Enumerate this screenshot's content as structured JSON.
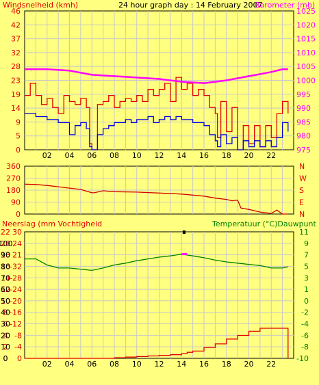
{
  "colors": {
    "bg": "#ffff80",
    "plot": "#ffff80",
    "grid": "#c8c8c8",
    "red": "#e00000",
    "blue": "#0000dd",
    "magenta": "#ff00ff",
    "green": "#008000",
    "wind_dir": "#d00000",
    "frame": "#000000"
  },
  "header": {
    "left": "Windsnelheid (kmh)",
    "center": "24 hour graph day : 14 February 2007",
    "right": "Barometer (mb)"
  },
  "chart_data": [
    {
      "type": "line",
      "name": "wind-barometer",
      "x_ticks": [
        "02",
        "04",
        "06",
        "08",
        "10",
        "12",
        "14",
        "16",
        "18",
        "20",
        "22"
      ],
      "x_range": [
        0,
        24
      ],
      "y_left": {
        "range": [
          0,
          46
        ],
        "ticks": [
          "0",
          "5",
          "9",
          "14",
          "19",
          "23",
          "28",
          "32",
          "37",
          "42",
          "46"
        ]
      },
      "y_right": {
        "range": [
          975,
          1025
        ],
        "ticks": [
          "975",
          "980",
          "985",
          "990",
          "995",
          "1000",
          "1005",
          "1010",
          "1015",
          "1020",
          "1025"
        ]
      },
      "series": [
        {
          "key": "gust",
          "color": "red",
          "axis": "left",
          "x": [
            0,
            0.5,
            1,
            1.5,
            2,
            2.5,
            3,
            3.5,
            4,
            4.5,
            5,
            5.5,
            5.8,
            6,
            6.5,
            7,
            7.5,
            8,
            8.5,
            9,
            9.5,
            10,
            10.5,
            11,
            11.5,
            12,
            12.5,
            13,
            13.5,
            14,
            14.5,
            15,
            15.5,
            16,
            16.5,
            17,
            17.2,
            17.5,
            18,
            18.5,
            19,
            19.5,
            20,
            20.5,
            21,
            21.5,
            22,
            22.5,
            23,
            23.5
          ],
          "y": [
            18,
            22,
            18,
            15,
            17,
            14,
            12,
            18,
            16,
            15,
            17,
            14,
            2,
            0,
            15,
            16,
            18,
            14,
            16,
            17,
            16,
            18,
            16,
            20,
            18,
            20,
            22,
            16,
            24,
            20,
            22,
            18,
            20,
            18,
            14,
            12,
            4,
            16,
            6,
            14,
            0,
            8,
            2,
            8,
            1,
            8,
            4,
            12,
            16,
            12
          ]
        },
        {
          "key": "wind",
          "color": "blue",
          "axis": "left",
          "x": [
            0,
            0.5,
            1,
            1.5,
            2,
            2.5,
            3,
            3.5,
            4,
            4.5,
            5,
            5.5,
            5.8,
            6,
            6.5,
            7,
            7.5,
            8,
            8.5,
            9,
            9.5,
            10,
            10.5,
            11,
            11.5,
            12,
            12.5,
            13,
            13.5,
            14,
            14.5,
            15,
            15.5,
            16,
            16.5,
            17,
            17.2,
            17.5,
            18,
            18.5,
            19,
            19.5,
            20,
            20.5,
            21,
            21.5,
            22,
            22.5,
            23,
            23.5
          ],
          "y": [
            12,
            12,
            11,
            11,
            10,
            10,
            9,
            9,
            5,
            8,
            9,
            7,
            1,
            0,
            5,
            7,
            8,
            9,
            9,
            10,
            9,
            10,
            10,
            11,
            9,
            10,
            11,
            10,
            11,
            10,
            10,
            9,
            9,
            8,
            5,
            3,
            1,
            5,
            2,
            4,
            0,
            3,
            1,
            3,
            1,
            3,
            1,
            4,
            9,
            6
          ]
        },
        {
          "key": "barometer",
          "color": "magenta",
          "axis": "right",
          "x": [
            0,
            2,
            4,
            6,
            8,
            10,
            12,
            14,
            16,
            18,
            20,
            22,
            23,
            23.5
          ],
          "y": [
            1004,
            1004,
            1003.5,
            1002,
            1001.5,
            1001,
            1000.5,
            999.5,
            999,
            1000,
            1001.5,
            1003,
            1004,
            1004
          ]
        }
      ]
    },
    {
      "type": "line",
      "name": "wind-direction",
      "x_range": [
        0,
        24
      ],
      "y_left": {
        "range": [
          0,
          360
        ],
        "ticks": [
          "0",
          "90",
          "180",
          "270",
          "360"
        ]
      },
      "y_right": {
        "ticks": [
          "N",
          "E",
          "S",
          "W",
          "N"
        ]
      },
      "series": [
        {
          "key": "direction",
          "color": "wind_dir",
          "x": [
            0,
            1,
            2,
            3,
            4,
            5,
            6,
            6.2,
            7,
            8,
            10,
            12,
            14,
            16,
            17,
            18,
            18.5,
            19,
            19.3,
            20,
            21,
            22,
            22.5,
            23,
            23.5
          ],
          "y": [
            225,
            222,
            215,
            205,
            195,
            185,
            160,
            160,
            175,
            168,
            165,
            158,
            150,
            135,
            120,
            110,
            100,
            105,
            45,
            35,
            15,
            5,
            30,
            0,
            0
          ]
        }
      ]
    },
    {
      "type": "line",
      "name": "rain-humidity-temperature",
      "x_range": [
        0,
        24
      ],
      "labels": {
        "left": "Neerslag (mm Vochtigheid",
        "right": "Temperatuur (°C)Dauwpunt"
      },
      "y_left_a": {
        "ticks": [
          "0",
          "2",
          "4",
          "6",
          "8",
          "10",
          "12",
          "14",
          "16",
          "18",
          "20",
          "22"
        ]
      },
      "y_left_b": {
        "ticks": [
          "0",
          "10",
          "20",
          "30",
          "40",
          "50",
          "60",
          "70",
          "80",
          "90",
          "100"
        ]
      },
      "y_left_mid": {
        "ticks": [
          "0",
          "-4",
          "-8",
          "-12",
          "-16",
          "-20",
          "-24",
          "-28",
          "-32",
          "21",
          "24",
          "30"
        ]
      },
      "y_right": {
        "range": [
          -10,
          11
        ],
        "ticks": [
          "-10",
          "-8",
          "-6",
          "-4",
          "-2",
          "0",
          "1",
          "3",
          "5",
          "7",
          "9",
          "11"
        ]
      },
      "series": [
        {
          "key": "temperature",
          "color": "green",
          "axis": "right",
          "x": [
            0,
            1,
            2,
            3,
            4,
            5,
            6,
            7,
            8,
            9,
            10,
            11,
            12,
            13,
            14,
            15,
            16,
            17,
            18,
            19,
            20,
            21,
            22,
            23,
            23.5
          ],
          "y": [
            6.5,
            6.5,
            5.5,
            5,
            5,
            4.8,
            4.6,
            5,
            5.5,
            5.8,
            6.2,
            6.5,
            6.8,
            7,
            7.3,
            7,
            6.7,
            6.3,
            6,
            5.8,
            5.6,
            5.4,
            5,
            5,
            5.2
          ]
        },
        {
          "key": "dewpoint",
          "color": "magenta",
          "axis": "right",
          "x": [
            14,
            14.5
          ],
          "y": [
            7.3,
            7.3
          ]
        },
        {
          "key": "rain",
          "color": "red",
          "axis": "right",
          "x": [
            0,
            2,
            4,
            6,
            8,
            9,
            10,
            11,
            12,
            13,
            14,
            14.5,
            15,
            16,
            17,
            18,
            19,
            20,
            21,
            22,
            23,
            23.5
          ],
          "y": [
            -10,
            -10,
            -10,
            -10,
            -9.9,
            -9.8,
            -9.7,
            -9.6,
            -9.5,
            -9.4,
            -9.2,
            -9.0,
            -8.8,
            -8.2,
            -7.6,
            -6.8,
            -6.2,
            -5.5,
            -5.0,
            -5.0,
            -5.0,
            -5.0
          ]
        }
      ]
    }
  ]
}
